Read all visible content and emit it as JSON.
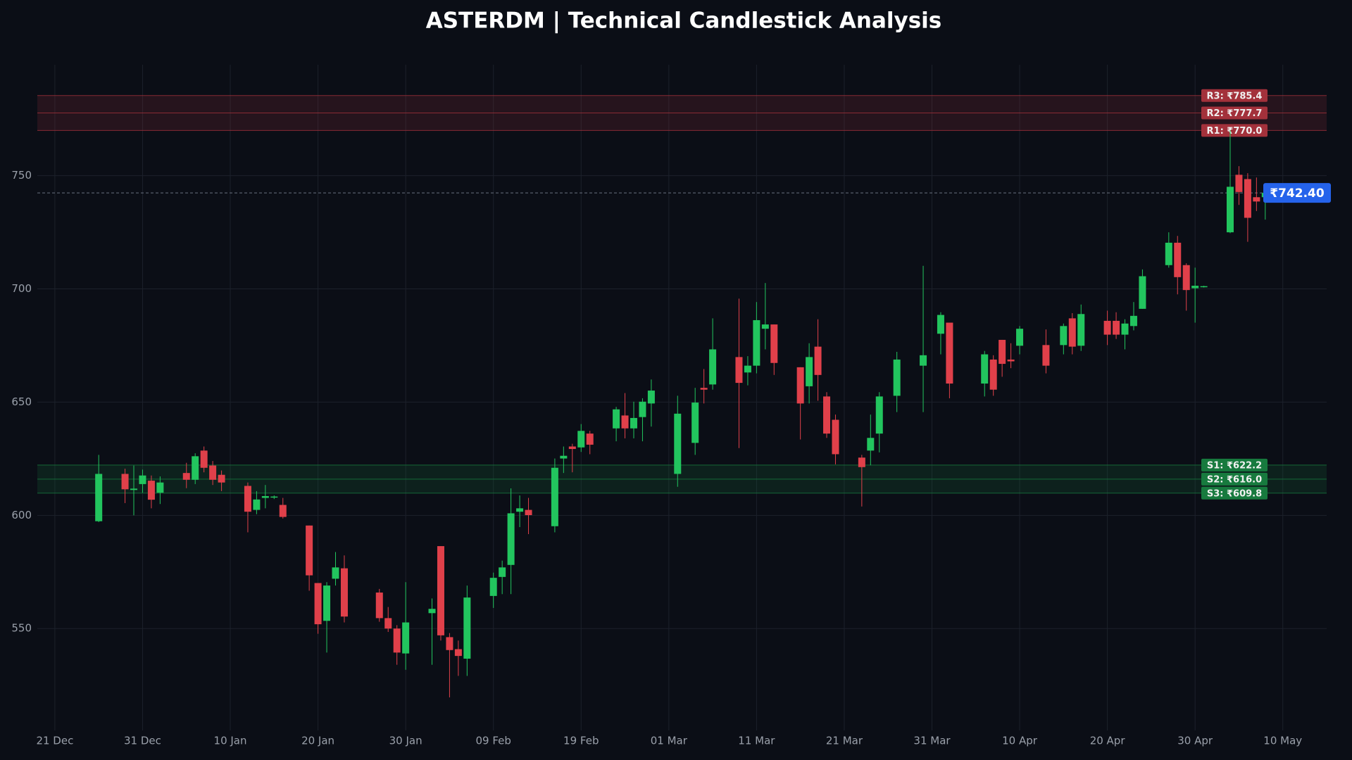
{
  "chart_data": {
    "type": "candlestick",
    "title": "ASTERDM | Technical Candlestick Analysis",
    "up_color": "#22c55e",
    "down_color": "#e0404a",
    "grid": true,
    "xlim": [
      "19 Dec",
      "15 May"
    ],
    "xticks": [
      "21 Dec",
      "31 Dec",
      "10 Jan",
      "20 Jan",
      "30 Jan",
      "09 Feb",
      "19 Feb",
      "01 Mar",
      "11 Mar",
      "21 Mar",
      "31 Mar",
      "10 Apr",
      "20 Apr",
      "30 Apr",
      "10 May"
    ],
    "ylim": [
      505,
      799
    ],
    "yticks": [
      550,
      600,
      650,
      700,
      750
    ],
    "x": [
      "26 Dec",
      "29 Dec",
      "30 Dec",
      "31 Dec",
      "01 Jan",
      "02 Jan",
      "05 Jan",
      "06 Jan",
      "07 Jan",
      "08 Jan",
      "09 Jan",
      "12 Jan",
      "13 Jan",
      "14 Jan",
      "15 Jan",
      "16 Jan",
      "19 Jan",
      "20 Jan",
      "21 Jan",
      "22 Jan",
      "23 Jan",
      "27 Jan",
      "28 Jan",
      "29 Jan",
      "30 Jan",
      "02 Feb",
      "03 Feb",
      "04 Feb",
      "05 Feb",
      "06 Feb",
      "09 Feb",
      "10 Feb",
      "11 Feb",
      "12 Feb",
      "13 Feb",
      "16 Feb",
      "17 Feb",
      "18 Feb",
      "19 Feb",
      "20 Feb",
      "23 Feb",
      "24 Feb",
      "25 Feb",
      "26 Feb",
      "27 Feb",
      "02 Mar",
      "04 Mar",
      "05 Mar",
      "06 Mar",
      "09 Mar",
      "10 Mar",
      "11 Mar",
      "12 Mar",
      "13 Mar",
      "16 Mar",
      "17 Mar",
      "18 Mar",
      "19 Mar",
      "20 Mar",
      "23 Mar",
      "24 Mar",
      "25 Mar",
      "27 Mar",
      "30 Mar",
      "01 Apr",
      "02 Apr",
      "06 Apr",
      "07 Apr",
      "08 Apr",
      "09 Apr",
      "10 Apr",
      "13 Apr",
      "15 Apr",
      "16 Apr",
      "17 Apr",
      "20 Apr",
      "21 Apr",
      "22 Apr",
      "23 Apr",
      "24 Apr",
      "27 Apr",
      "28 Apr",
      "29 Apr",
      "30 Apr",
      "01 May",
      "04 May",
      "05 May",
      "06 May",
      "07 May",
      "08 May"
    ],
    "open": [
      597.4,
      618.3,
      611.2,
      613.8,
      615.3,
      610,
      618.7,
      615.7,
      628.6,
      622,
      617.9,
      613,
      602.4,
      607.7,
      608.1,
      604.6,
      595.5,
      570.1,
      553.4,
      572,
      576.6,
      565.9,
      554.6,
      550,
      539,
      556.8,
      586.4,
      546.2,
      540.9,
      536.7,
      564.4,
      572.8,
      578.1,
      601.6,
      602.4,
      595.2,
      625.1,
      630.4,
      630,
      636.1,
      638.4,
      644.1,
      638.4,
      643.4,
      649.4,
      618.3,
      632,
      656.3,
      657.8,
      669.9,
      663.1,
      666.1,
      682.4,
      684.3,
      665.4,
      657,
      674.5,
      652.5,
      642.2,
      625.5,
      628.6,
      636.1,
      652.8,
      666.1,
      680.2,
      685.1,
      658.2,
      668.8,
      677.5,
      668.8,
      674.9,
      675.2,
      675.2,
      687,
      674.9,
      685.9,
      685.9,
      679.8,
      683.6,
      691.2,
      710.5,
      720.4,
      710.5,
      700.3,
      700.8,
      725,
      750.4,
      748.5,
      740.5,
      740.5
    ],
    "high": [
      626.7,
      620.6,
      622,
      620.2,
      617.6,
      617.2,
      623.2,
      627.4,
      630.4,
      624,
      619.8,
      614.5,
      610.7,
      613.4,
      608.8,
      607.7,
      595.5,
      570.1,
      570.5,
      583.8,
      582.3,
      567.5,
      559.5,
      551.5,
      570.5,
      563.3,
      586.4,
      548,
      544.7,
      569,
      574.7,
      580,
      611.9,
      608.8,
      607.7,
      625.1,
      630.4,
      631.6,
      640.3,
      637.3,
      647.9,
      654,
      650.2,
      651.7,
      660,
      652.8,
      656.3,
      664.6,
      687,
      695.7,
      670.3,
      694.2,
      702.6,
      684.3,
      665.4,
      676,
      686.6,
      654.4,
      644.5,
      626.7,
      644.5,
      654.4,
      672.2,
      710.2,
      689.7,
      685.1,
      672.6,
      670.7,
      677.5,
      676,
      683.6,
      682.1,
      684.7,
      689.3,
      693.1,
      690.4,
      689.7,
      686.6,
      694.2,
      708.6,
      725,
      723.4,
      711.3,
      709.4,
      701.4,
      770.1,
      754.2,
      751.1,
      749.2,
      745
    ],
    "low": [
      597,
      605.4,
      600,
      610,
      603.1,
      605,
      612,
      613.8,
      619,
      613.4,
      610.7,
      592.5,
      600.5,
      603.1,
      607.2,
      598.6,
      566.7,
      547.7,
      539.4,
      569,
      552.7,
      553,
      548.5,
      534,
      531.8,
      534,
      544.7,
      519.6,
      529.1,
      529.1,
      559.1,
      565.2,
      565.2,
      594.8,
      591.7,
      592.5,
      618.7,
      619,
      628,
      627,
      632.7,
      634,
      634,
      632.7,
      639.2,
      612.6,
      626.7,
      649.4,
      655.5,
      629.7,
      657.4,
      662.7,
      673.3,
      662,
      633.5,
      649.4,
      650.6,
      634.2,
      622.5,
      603.9,
      622.1,
      627.8,
      645.6,
      645.6,
      671.1,
      651.7,
      652.5,
      652.8,
      661.2,
      665,
      671.1,
      662.7,
      671.1,
      671.1,
      672.6,
      675.2,
      677.9,
      673.3,
      681.7,
      691.2,
      709.4,
      697.6,
      690.4,
      685.1,
      700.6,
      724.6,
      737.1,
      720.8,
      734.4,
      730.6
    ],
    "close": [
      618.3,
      611.5,
      611.8,
      617.6,
      606.9,
      614.5,
      615.7,
      626.1,
      621,
      615.7,
      614.5,
      601.6,
      607,
      608.5,
      608.3,
      599.3,
      573.5,
      551.9,
      569,
      577,
      555.3,
      554.6,
      550,
      539.4,
      552.7,
      558.7,
      547,
      540.5,
      537.9,
      563.7,
      572.4,
      577,
      600.9,
      603.1,
      600.1,
      621,
      626.3,
      629.3,
      637.3,
      631.2,
      646.8,
      638.4,
      643,
      650.2,
      655.1,
      644.9,
      649.8,
      655.5,
      673.3,
      658.5,
      666.1,
      686.2,
      684.3,
      667.3,
      649.4,
      669.9,
      662,
      636.1,
      627,
      621.3,
      634.2,
      652.5,
      668.8,
      670.7,
      688.5,
      658.2,
      671.1,
      655.5,
      666.9,
      668,
      682.4,
      666.1,
      683.6,
      674.5,
      688.9,
      679.8,
      679.8,
      684.7,
      688.1,
      705.6,
      720.4,
      705.2,
      699.5,
      701.4,
      701.2,
      745.1,
      742.8,
      731.4,
      738.6,
      742.4
    ],
    "levels": [
      {
        "label": "R3: ₹785.4",
        "value": 785.4,
        "color": "#a3313b"
      },
      {
        "label": "R2: ₹777.7",
        "value": 777.7,
        "color": "#a3313b"
      },
      {
        "label": "R1: ₹770.0",
        "value": 770.0,
        "color": "#a3313b"
      },
      {
        "label": "S1: ₹622.2",
        "value": 622.2,
        "color": "#177a3e"
      },
      {
        "label": "S2: ₹616.0",
        "value": 616.0,
        "color": "#177a3e"
      },
      {
        "label": "S3: ₹609.8",
        "value": 609.8,
        "color": "#177a3e"
      }
    ],
    "last_price": {
      "value": 742.4,
      "label": "₹742.40",
      "color": "#2563eb"
    }
  }
}
